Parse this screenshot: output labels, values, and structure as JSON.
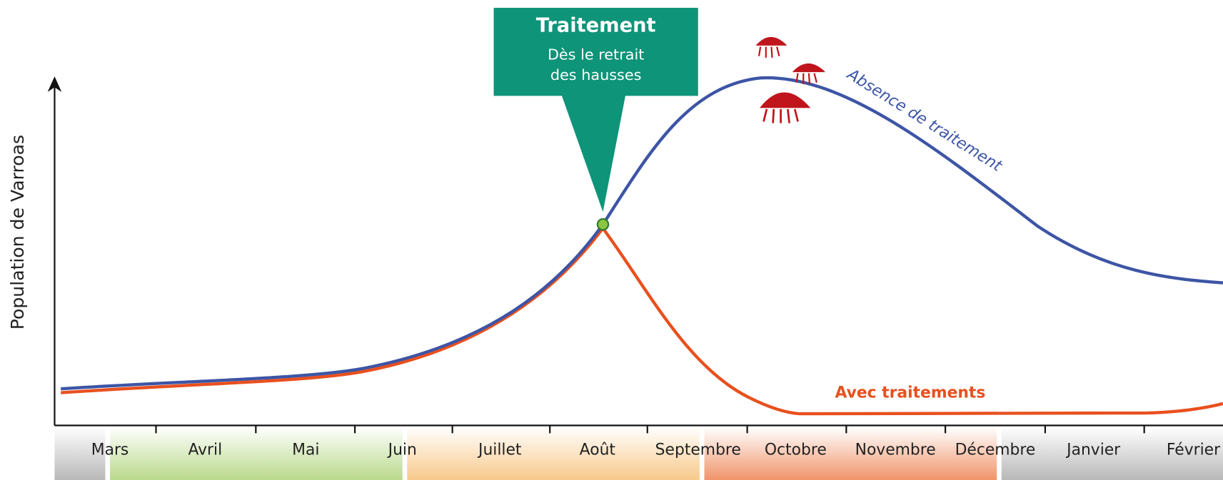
{
  "y_axis_label": "Population de Varroas",
  "months": [
    "Mars",
    "Avril",
    "Mai",
    "Juin",
    "Juillet",
    "Août",
    "Septembre",
    "Octobre",
    "Novembre",
    "Décembre",
    "Janvier",
    "Février"
  ],
  "callout": {
    "title": "Traitement",
    "lines": [
      "Dès le retrait",
      "des hausses"
    ]
  },
  "curves": {
    "untreated": "Absence de traitement",
    "treated": "Avec traitements"
  }
}
